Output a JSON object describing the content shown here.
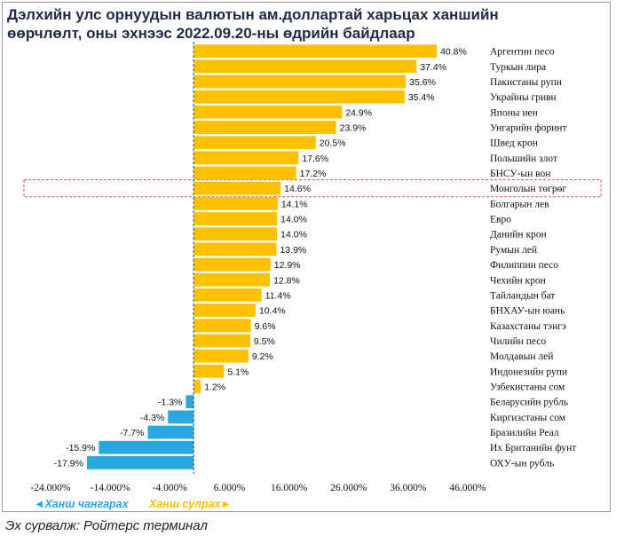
{
  "title": "Дэлхийн улс орнуудын валютын ам.доллартай харьцах ханшийн өөрчлөлт, оны эхнээс 2022.09.20-ны өдрийн байдлаар",
  "source": "Эх сурвалж: Ройтерс терминал",
  "legend": {
    "left": "◄Ханш чангарах",
    "right": "Ханш сулрах►",
    "left_color": "#29a8e0",
    "right_color": "#ffc000"
  },
  "colors": {
    "positive": "#ffc000",
    "negative": "#29a8e0",
    "highlight": "#d9534f"
  },
  "chart_data": {
    "type": "bar",
    "orientation": "horizontal",
    "title": "Дэлхийн улс орнуудын валютын ам.доллартай харьцах ханшийн өөрчлөлт, оны эхнээс 2022.09.20-ны өдрийн байдлаар",
    "categories": [
      "Аргентин песо",
      "Туркын лира",
      "Пакистаны рупи",
      "Украйны гривн",
      "Японы иен",
      "Унгарийн форинт",
      "Швед крон",
      "Польшийн злот",
      "БНСУ-ын вон",
      "Монголын төгрөг",
      "Болгарын лев",
      "Евро",
      "Данийн крон",
      "Румын лей",
      "Филиппин песо",
      "Чехийн крон",
      "Тайландын бат",
      "БНХАУ-ын юань",
      "Казахстаны тэнгэ",
      "Чилийн песо",
      "Молдавын лей",
      "Индонезийн рупи",
      "Узбекистаны сом",
      "Беларусийн рубль",
      "Киргизстаны сом",
      "Бразилийн Реал",
      "Их Британийн фунт",
      "ОХУ-ын рубль"
    ],
    "values": [
      40.8,
      37.4,
      35.6,
      35.4,
      24.9,
      23.9,
      20.5,
      17.6,
      17.2,
      14.6,
      14.1,
      14.0,
      14.0,
      13.9,
      12.9,
      12.8,
      11.4,
      10.4,
      9.6,
      9.5,
      9.2,
      5.1,
      1.2,
      -1.3,
      -4.3,
      -7.7,
      -15.9,
      -17.9
    ],
    "value_labels": [
      "40.8%",
      "37.4%",
      "35.6%",
      "35.4%",
      "24.9%",
      "23.9%",
      "20.5%",
      "17.6%",
      "17.2%",
      "14.6%",
      "14.1%",
      "14.0%",
      "14.0%",
      "13.9%",
      "12.9%",
      "12.8%",
      "11.4%",
      "10.4%",
      "9.6%",
      "9.5%",
      "9.2%",
      "5.1%",
      "1.2%",
      "-1.3%",
      "-4.3%",
      "-7.7%",
      "-15.9%",
      "-17.9%"
    ],
    "highlight_category": "Монголын төгрөг",
    "xlim": [
      -24,
      46
    ],
    "xticks": [
      -24,
      -14,
      -4,
      6,
      16,
      26,
      36,
      46
    ],
    "xtick_labels": [
      "-24.000%",
      "-14.000%",
      "-4.000%",
      "6.000%",
      "16.000%",
      "26.000%",
      "36.000%",
      "46.000%"
    ],
    "xlabel": "",
    "ylabel": ""
  }
}
